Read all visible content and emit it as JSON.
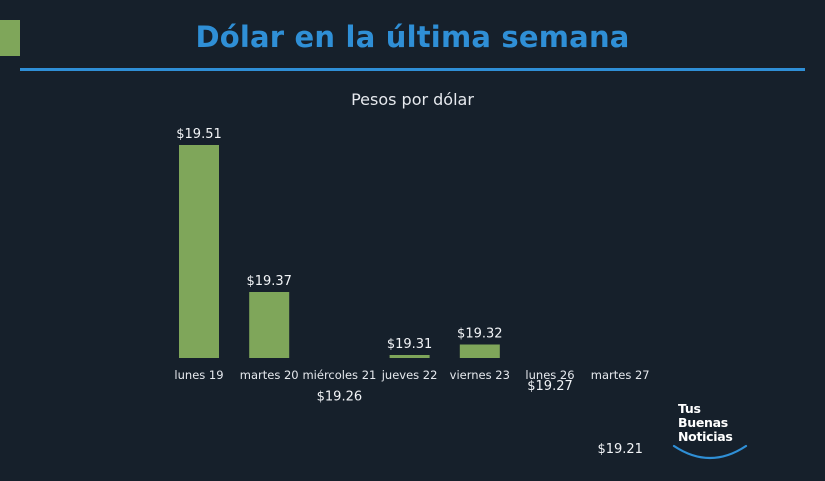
{
  "header": {
    "title": "Dólar en la última semana",
    "accent_color": "#7fa65a",
    "title_color": "#2f8fd6"
  },
  "chart_data": {
    "type": "bar",
    "title": "Dólar en la última semana",
    "subtitle": "Pesos por dólar",
    "categories": [
      "lunes 19",
      "martes 20",
      "miércoles 21",
      "jueves 22",
      "viernes 23",
      "lunes 26",
      "martes 27"
    ],
    "values": [
      19.51,
      19.37,
      19.26,
      19.31,
      19.32,
      19.27,
      19.21
    ],
    "value_labels": [
      "$19.51",
      "$19.37",
      "$19.26",
      "$19.31",
      "$19.32",
      "$19.27",
      "$19.21"
    ],
    "bar_color": "#7fa65a",
    "xlabel": "",
    "ylabel": "",
    "grid": false,
    "legend": "none"
  },
  "logo": {
    "lines": [
      "Tus",
      "Buenas",
      "Noticias"
    ]
  }
}
